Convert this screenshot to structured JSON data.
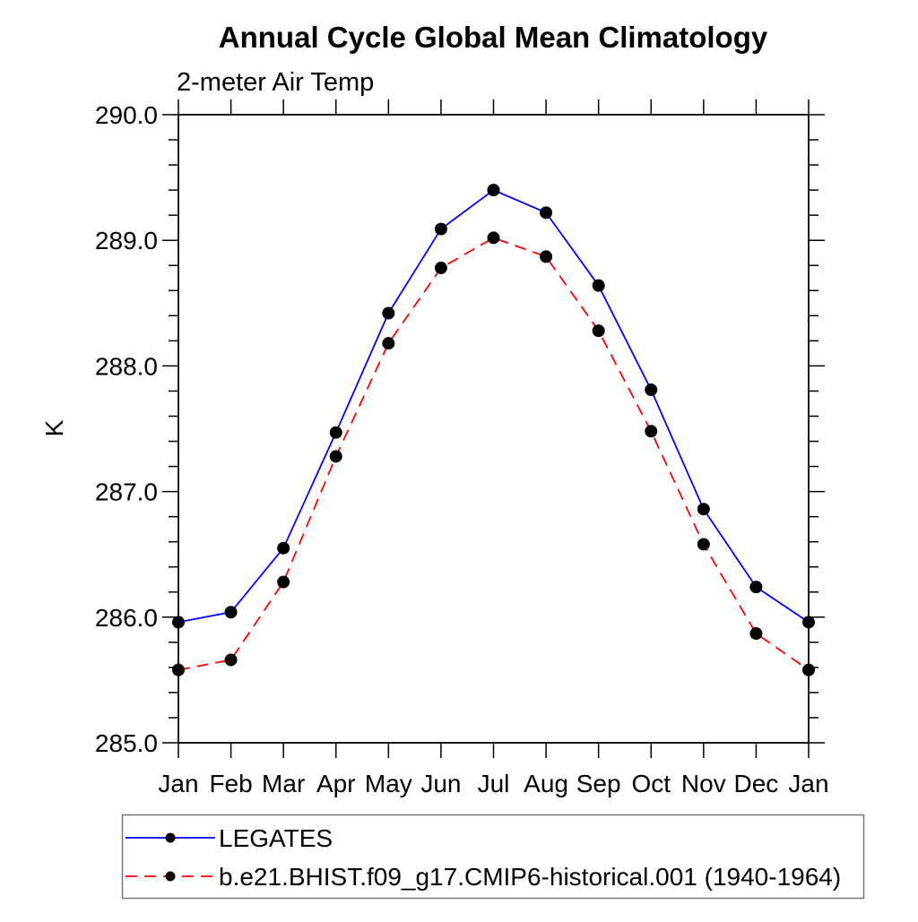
{
  "chart_data": {
    "type": "line",
    "title": "Annual Cycle Global Mean Climatology",
    "subtitle": "2-meter Air Temp",
    "ylabel": "K",
    "xlabel": "",
    "categories": [
      "Jan",
      "Feb",
      "Mar",
      "Apr",
      "May",
      "Jun",
      "Jul",
      "Aug",
      "Sep",
      "Oct",
      "Nov",
      "Dec",
      "Jan"
    ],
    "ylim": [
      285.0,
      290.0
    ],
    "y_tick_labels": [
      "285.0",
      "286.0",
      "287.0",
      "288.0",
      "289.0",
      "290.0"
    ],
    "y_major_interval": 1.0,
    "y_minor_interval": 0.2,
    "grid": false,
    "axis_color": "#000000",
    "marker_color": "#000000",
    "marker_shape": "filled-circle",
    "legend_position": "bottom-left",
    "series": [
      {
        "name": "LEGATES",
        "color": "#0000ff",
        "line_style": "solid",
        "values": [
          285.96,
          286.04,
          286.55,
          287.47,
          288.42,
          289.09,
          289.4,
          289.22,
          288.64,
          287.81,
          286.86,
          286.24,
          285.96
        ]
      },
      {
        "name": "b.e21.BHIST.f09_g17.CMIP6-historical.001 (1940-1964)",
        "color": "#ff0000",
        "line_style": "dashed",
        "values": [
          285.58,
          285.66,
          286.28,
          287.28,
          288.18,
          288.78,
          289.02,
          288.87,
          288.28,
          287.48,
          286.58,
          285.87,
          285.58
        ]
      }
    ]
  }
}
